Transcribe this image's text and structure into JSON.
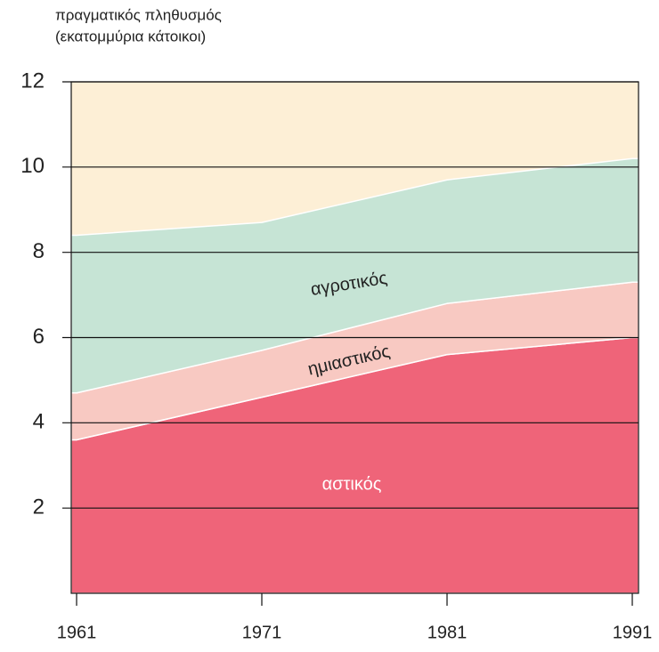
{
  "chart_data": {
    "type": "stacked_area",
    "y_label": [
      "πραγματικός πληθυσμός",
      "(εκατομμύρια κάτοικοι)"
    ],
    "x": [
      1961,
      1971,
      1981,
      1991
    ],
    "xlim": [
      1961,
      1991
    ],
    "xticks": [
      1961,
      1971,
      1981,
      1991
    ],
    "ylim": [
      0,
      12
    ],
    "yticks": [
      2,
      4,
      6,
      8,
      10,
      12
    ],
    "grid": true,
    "background": "#fdefd6",
    "series": [
      {
        "name": "αστικός",
        "color": "#ef6479",
        "values": [
          3.6,
          4.6,
          5.6,
          6.0
        ]
      },
      {
        "name": "ημιαστικός",
        "color": "#f8c9c2",
        "values": [
          1.1,
          1.1,
          1.2,
          1.3
        ]
      },
      {
        "name": "αγροτικός",
        "color": "#c6e4d5",
        "values": [
          3.7,
          3.0,
          2.9,
          2.9
        ]
      }
    ]
  }
}
